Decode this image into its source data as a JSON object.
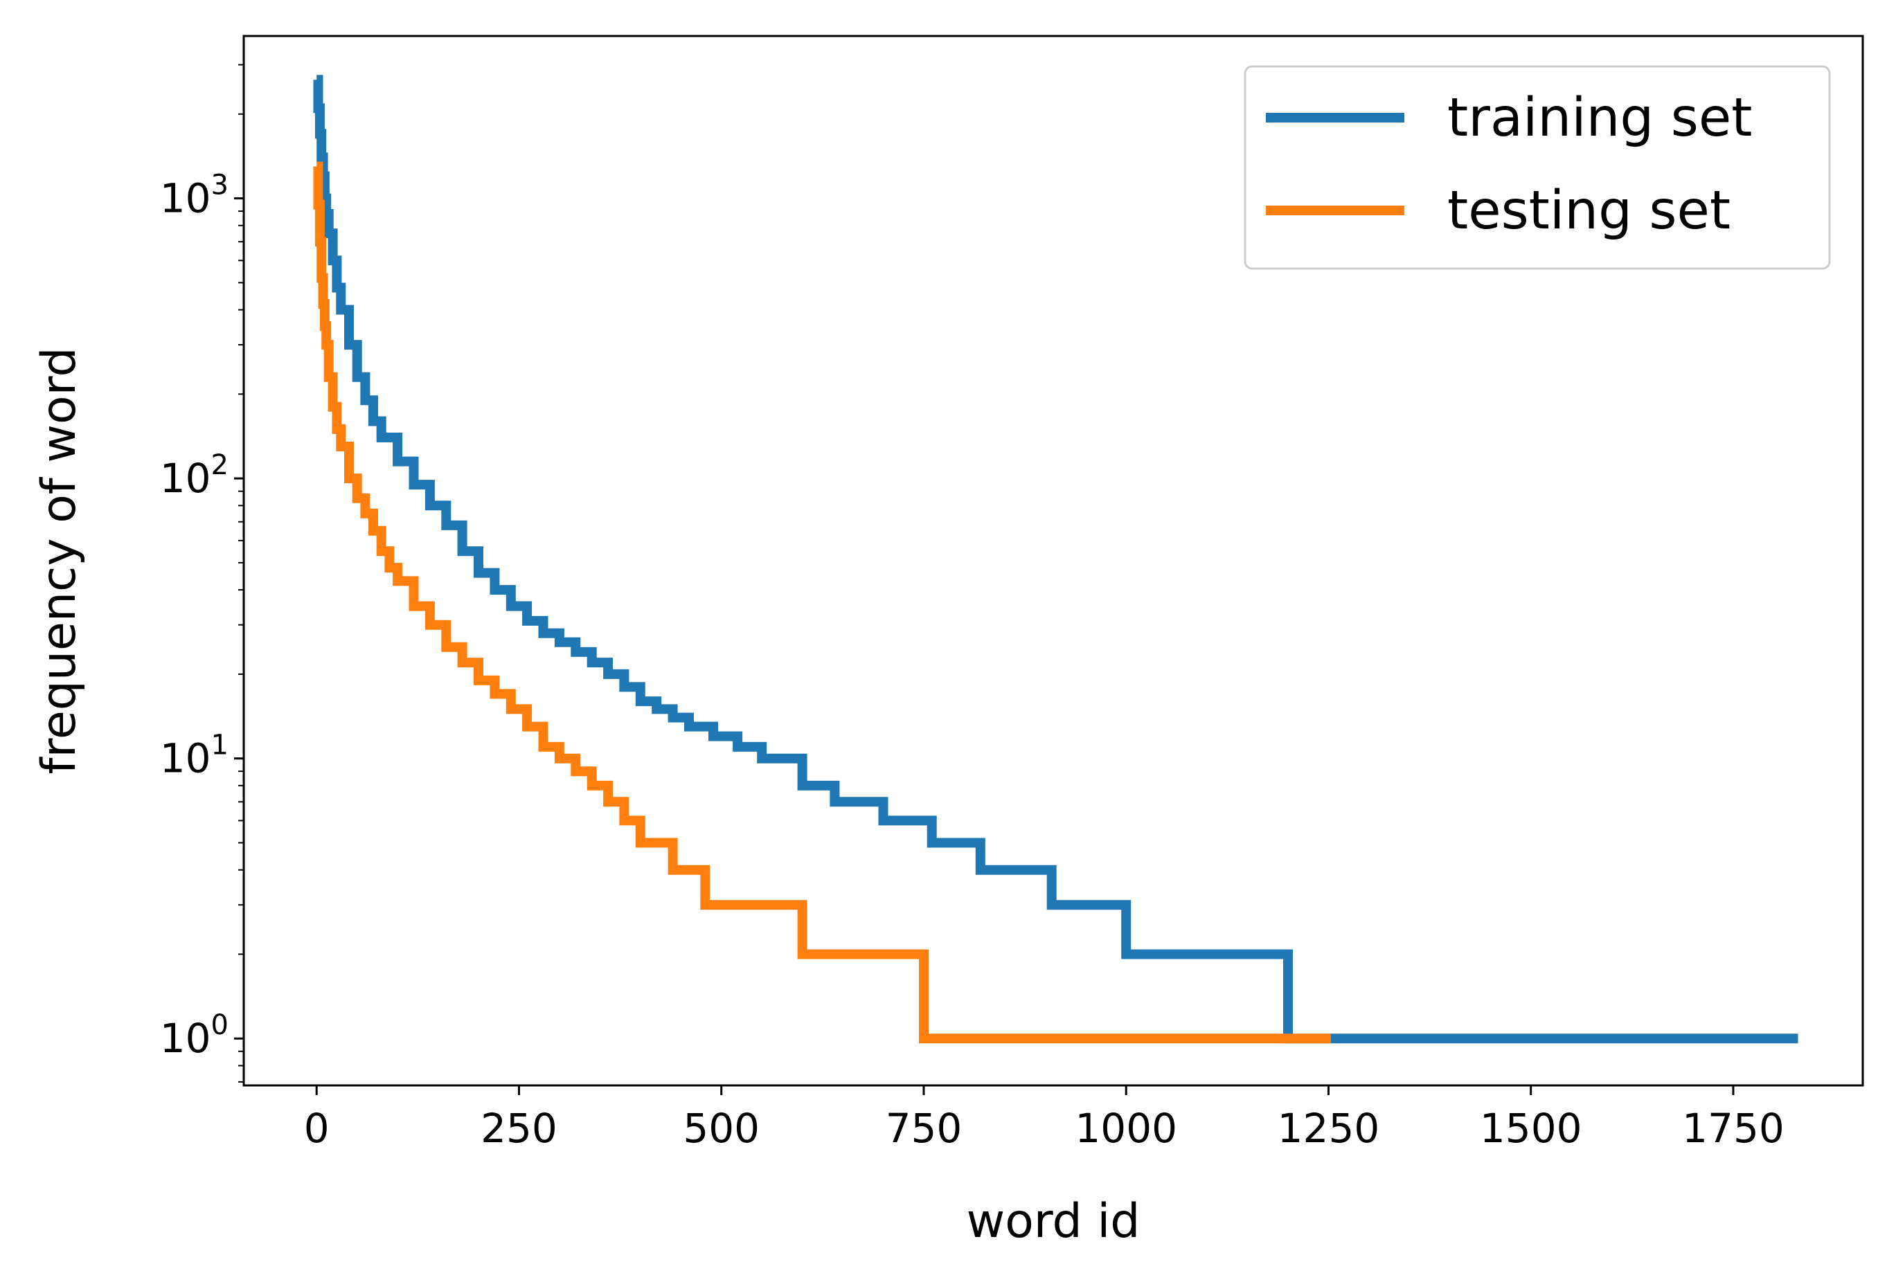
{
  "chart_data": {
    "type": "line",
    "title": "",
    "xlabel": "word id",
    "ylabel": "frequency of word",
    "xlim": [
      -90,
      1910
    ],
    "ylim": [
      0.68,
      3800
    ],
    "yscale": "log",
    "x_ticks": [
      0,
      250,
      500,
      750,
      1000,
      1250,
      1500,
      1750
    ],
    "x_tick_labels": [
      "0",
      "250",
      "500",
      "750",
      "1000",
      "1250",
      "1500",
      "1750"
    ],
    "y_ticks": [
      1,
      10,
      100,
      1000
    ],
    "y_tick_labels": [
      {
        "base": "10",
        "exp": "0"
      },
      {
        "base": "10",
        "exp": "1"
      },
      {
        "base": "10",
        "exp": "2"
      },
      {
        "base": "10",
        "exp": "3"
      }
    ],
    "legend": {
      "position": "top-right"
    },
    "grid": false,
    "series": [
      {
        "name": "training set",
        "color": "#1f77b4",
        "x": [
          0,
          2,
          4,
          6,
          8,
          10,
          12,
          15,
          20,
          25,
          30,
          40,
          50,
          60,
          70,
          80,
          100,
          120,
          140,
          160,
          180,
          200,
          220,
          240,
          260,
          280,
          300,
          320,
          340,
          360,
          380,
          400,
          420,
          440,
          460,
          490,
          520,
          550,
          600,
          640,
          700,
          760,
          820,
          908,
          1000,
          1100,
          1138,
          1200,
          1500,
          1830
        ],
        "y": [
          2650,
          2100,
          1700,
          1400,
          1200,
          1000,
          880,
          750,
          600,
          480,
          400,
          300,
          230,
          190,
          160,
          140,
          115,
          95,
          80,
          68,
          55,
          46,
          40,
          35,
          31,
          28,
          26,
          24,
          22,
          20,
          18,
          16,
          15,
          14,
          13,
          12,
          11,
          10,
          8,
          7,
          6,
          5,
          4,
          3,
          2,
          2,
          2,
          1,
          1,
          1
        ]
      },
      {
        "name": "testing set",
        "color": "#ff7f0e",
        "x": [
          0,
          2,
          4,
          6,
          8,
          10,
          12,
          15,
          20,
          25,
          30,
          40,
          50,
          60,
          70,
          80,
          90,
          100,
          120,
          140,
          160,
          180,
          200,
          220,
          240,
          260,
          280,
          300,
          320,
          340,
          360,
          380,
          400,
          440,
          480,
          520,
          560,
          600,
          650,
          700,
          750,
          800,
          1000,
          1253
        ],
        "y": [
          1300,
          950,
          700,
          520,
          420,
          350,
          300,
          230,
          180,
          150,
          130,
          100,
          85,
          75,
          65,
          55,
          48,
          43,
          35,
          30,
          25,
          22,
          19,
          17,
          15,
          13,
          11,
          10,
          9,
          8,
          7,
          6,
          5,
          4,
          3,
          3,
          3,
          2,
          2,
          2,
          1,
          1,
          1,
          1
        ]
      }
    ]
  }
}
